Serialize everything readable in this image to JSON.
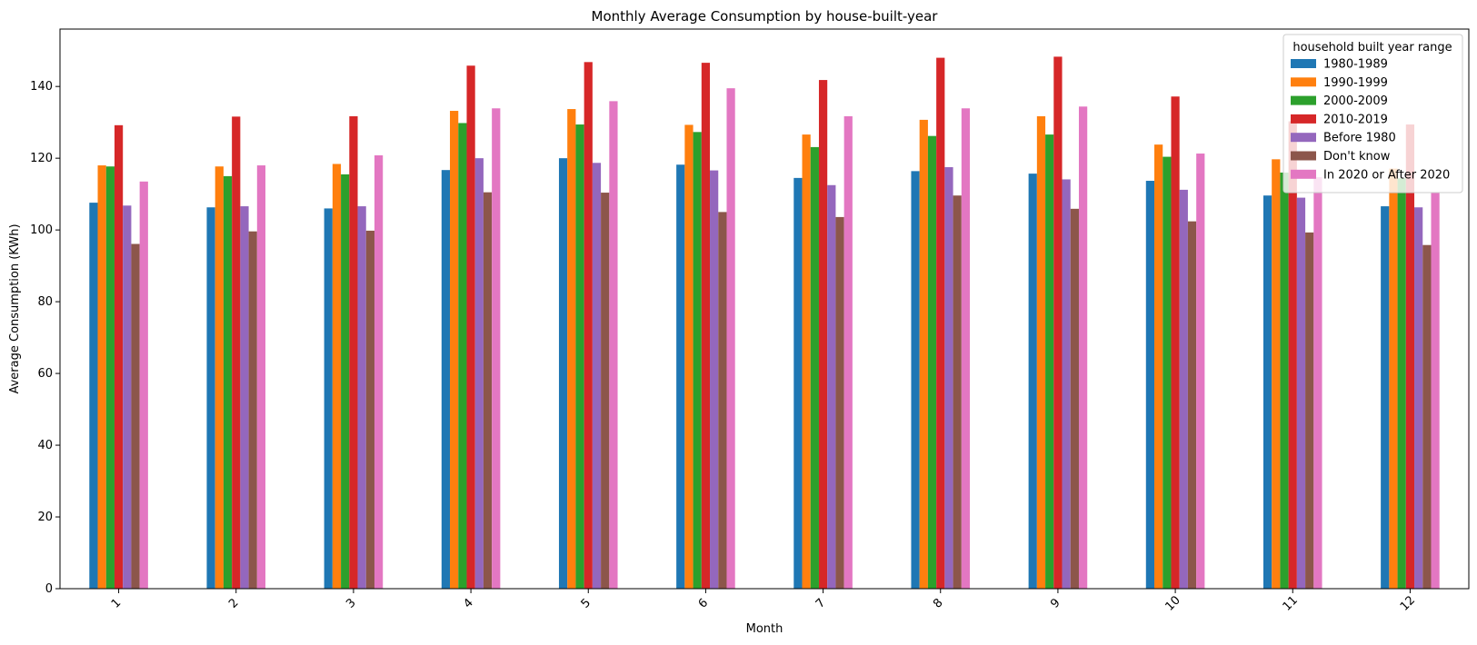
{
  "chart_data": {
    "type": "bar",
    "title": "Monthly Average Consumption by house-built-year",
    "xlabel": "Month",
    "ylabel": "Average Consumption (KWh)",
    "categories": [
      "1",
      "2",
      "3",
      "4",
      "5",
      "6",
      "7",
      "8",
      "9",
      "10",
      "11",
      "12"
    ],
    "ylim": [
      0,
      156
    ],
    "yticks": [
      0,
      20,
      40,
      60,
      80,
      100,
      120,
      140
    ],
    "grid": false,
    "legend": {
      "title": "household built year range",
      "placement": "top-right"
    },
    "series": [
      {
        "name": "1980-1989",
        "color": "#1f77b4",
        "values": [
          107.6,
          106.3,
          106.0,
          116.7,
          120.0,
          118.2,
          114.5,
          116.4,
          115.7,
          113.7,
          109.6,
          106.6
        ]
      },
      {
        "name": "1990-1999",
        "color": "#ff7f0e",
        "values": [
          118.0,
          117.7,
          118.4,
          133.2,
          133.7,
          129.3,
          126.6,
          130.7,
          131.7,
          123.8,
          119.7,
          117.1
        ]
      },
      {
        "name": "2000-2009",
        "color": "#2ca02c",
        "values": [
          117.7,
          115.0,
          115.5,
          129.8,
          129.4,
          127.3,
          123.1,
          126.2,
          126.6,
          120.4,
          116.0,
          114.4
        ]
      },
      {
        "name": "2010-2019",
        "color": "#d62728",
        "values": [
          129.2,
          131.6,
          131.7,
          145.8,
          146.8,
          146.6,
          141.8,
          148.0,
          148.3,
          137.2,
          130.3,
          129.4
        ]
      },
      {
        "name": "Before 1980",
        "color": "#9467bd",
        "values": [
          106.8,
          106.6,
          106.6,
          120.0,
          118.7,
          116.6,
          112.5,
          117.5,
          114.1,
          111.2,
          109.0,
          106.3
        ]
      },
      {
        "name": "Don't know",
        "color": "#8c564b",
        "values": [
          96.1,
          99.6,
          99.8,
          110.5,
          110.4,
          105.0,
          103.6,
          109.6,
          105.9,
          102.4,
          99.3,
          95.8
        ]
      },
      {
        "name": "In 2020 or After 2020",
        "color": "#e377c2",
        "values": [
          113.5,
          118.0,
          120.8,
          133.9,
          135.9,
          139.5,
          131.7,
          133.9,
          134.4,
          121.3,
          114.7,
          110.4
        ]
      }
    ]
  }
}
